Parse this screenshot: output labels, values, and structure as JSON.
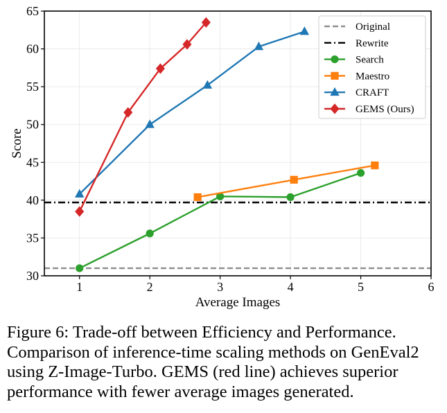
{
  "chart_data": {
    "type": "line",
    "xlabel": "Average Images",
    "ylabel": "Score",
    "xlim": [
      0.5,
      6
    ],
    "ylim": [
      30,
      65
    ],
    "xticks": [
      "1",
      "2",
      "3",
      "4",
      "5",
      "6"
    ],
    "yticks": [
      "30",
      "35",
      "40",
      "45",
      "50",
      "55",
      "60",
      "65"
    ],
    "grid": true,
    "legend_position": "top-right",
    "reference_lines": [
      {
        "name": "Original",
        "y": 31.0,
        "color": "#8c8c8c",
        "style": "dashed"
      },
      {
        "name": "Rewrite",
        "y": 39.7,
        "color": "#000000",
        "style": "dashdot"
      }
    ],
    "series": [
      {
        "name": "Search",
        "color": "#2ca02c",
        "marker": "circle",
        "x": [
          1,
          2,
          3,
          4,
          5
        ],
        "y": [
          31.0,
          35.6,
          40.5,
          40.4,
          43.6
        ]
      },
      {
        "name": "Maestro",
        "color": "#ff7f0e",
        "marker": "square",
        "x": [
          2.68,
          4.05,
          5.2
        ],
        "y": [
          40.4,
          42.7,
          44.6
        ]
      },
      {
        "name": "CRAFT",
        "color": "#1f77b4",
        "marker": "triangle",
        "x": [
          1,
          2,
          2.82,
          3.55,
          4.2
        ],
        "y": [
          40.8,
          50.0,
          55.2,
          60.3,
          62.3
        ]
      },
      {
        "name": "GEMS (Ours)",
        "color": "#d62728",
        "marker": "diamond",
        "x": [
          1,
          1.69,
          2.15,
          2.53,
          2.8
        ],
        "y": [
          38.5,
          51.6,
          57.4,
          60.6,
          63.5
        ]
      }
    ]
  },
  "caption": {
    "label": "Figure 6:",
    "text": "Trade-off between Efficiency and Performance. Comparison of inference-time scaling methods on GenEval2 using Z-Image-Turbo. GEMS (red line) achieves superior performance with fewer average images generated."
  }
}
